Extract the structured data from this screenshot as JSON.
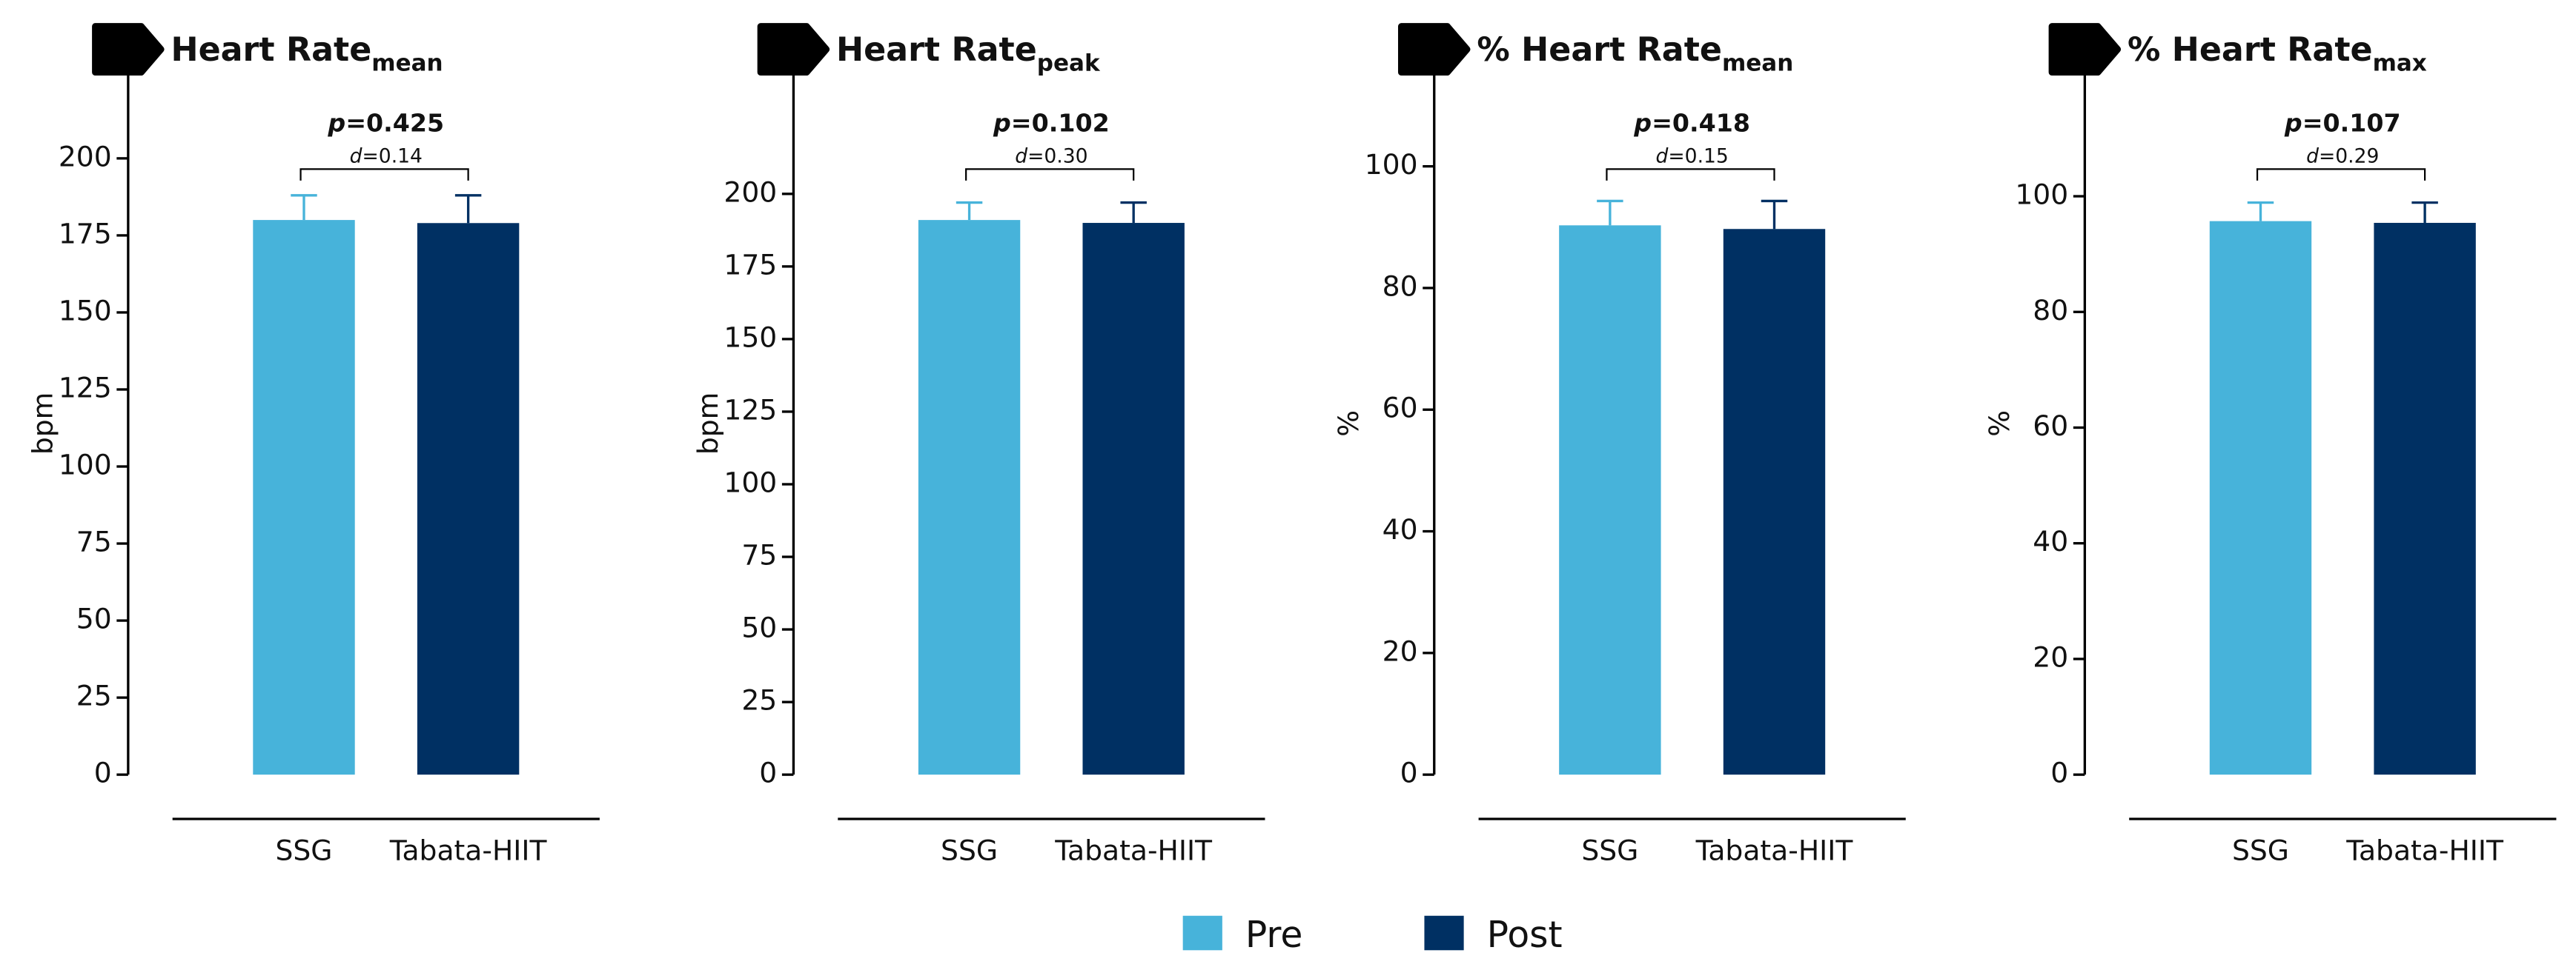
{
  "chart_data": [
    {
      "type": "bar",
      "title": "Heart Rate",
      "title_subscript": "mean",
      "ylabel": "bpm",
      "categories": [
        "SSG",
        "Tabata-HIIT"
      ],
      "series": [
        {
          "name": "Pre",
          "color": "#47b3da",
          "values": [
            180,
            null
          ],
          "errors": [
            8,
            null
          ]
        },
        {
          "name": "Post",
          "color": "#003063",
          "values": [
            null,
            179
          ],
          "errors": [
            null,
            9
          ]
        }
      ],
      "ylim": [
        0,
        229
      ],
      "yticks": [
        0,
        25,
        50,
        75,
        100,
        125,
        150,
        175,
        200
      ],
      "annotation": {
        "p": "p",
        "p_value": "=0.425",
        "d": "d",
        "d_value": "=0.14"
      }
    },
    {
      "type": "bar",
      "title": "Heart Rate",
      "title_subscript": "peak",
      "ylabel": "bpm",
      "categories": [
        "SSG",
        "Tabata-HIIT"
      ],
      "series": [
        {
          "name": "Pre",
          "color": "#47b3da",
          "values": [
            191,
            null
          ],
          "errors": [
            6,
            null
          ]
        },
        {
          "name": "Post",
          "color": "#003063",
          "values": [
            null,
            190
          ],
          "errors": [
            null,
            7
          ]
        }
      ],
      "ylim": [
        0,
        243
      ],
      "yticks": [
        0,
        25,
        50,
        75,
        100,
        125,
        150,
        175,
        200
      ],
      "annotation": {
        "p": "p",
        "p_value": "=0.102",
        "d": "d",
        "d_value": "=0.30"
      }
    },
    {
      "type": "bar",
      "title": "% Heart Rate",
      "title_subscript": "mean",
      "ylabel": "%",
      "categories": [
        "SSG",
        "Tabata-HIIT"
      ],
      "series": [
        {
          "name": "Pre",
          "color": "#47b3da",
          "values": [
            90.3,
            null
          ],
          "errors": [
            4,
            null
          ]
        },
        {
          "name": "Post",
          "color": "#003063",
          "values": [
            null,
            89.7
          ],
          "errors": [
            null,
            4.6
          ]
        }
      ],
      "ylim": [
        0,
        116
      ],
      "yticks": [
        0,
        20,
        40,
        60,
        80,
        100
      ],
      "annotation": {
        "p": "p",
        "p_value": "=0.418",
        "d": "d",
        "d_value": "=0.15"
      }
    },
    {
      "type": "bar",
      "title": "% Heart Rate",
      "title_subscript": "max",
      "ylabel": "%",
      "categories": [
        "SSG",
        "Tabata-HIIT"
      ],
      "series": [
        {
          "name": "Pre",
          "color": "#47b3da",
          "values": [
            95.7,
            null
          ],
          "errors": [
            3.2,
            null
          ]
        },
        {
          "name": "Post",
          "color": "#003063",
          "values": [
            null,
            95.4
          ],
          "errors": [
            null,
            3.5
          ]
        }
      ],
      "ylim": [
        0,
        122
      ],
      "yticks": [
        0,
        20,
        40,
        60,
        80,
        100
      ],
      "annotation": {
        "p": "p",
        "p_value": "=0.107",
        "d": "d",
        "d_value": "=0.29"
      }
    }
  ]
}
